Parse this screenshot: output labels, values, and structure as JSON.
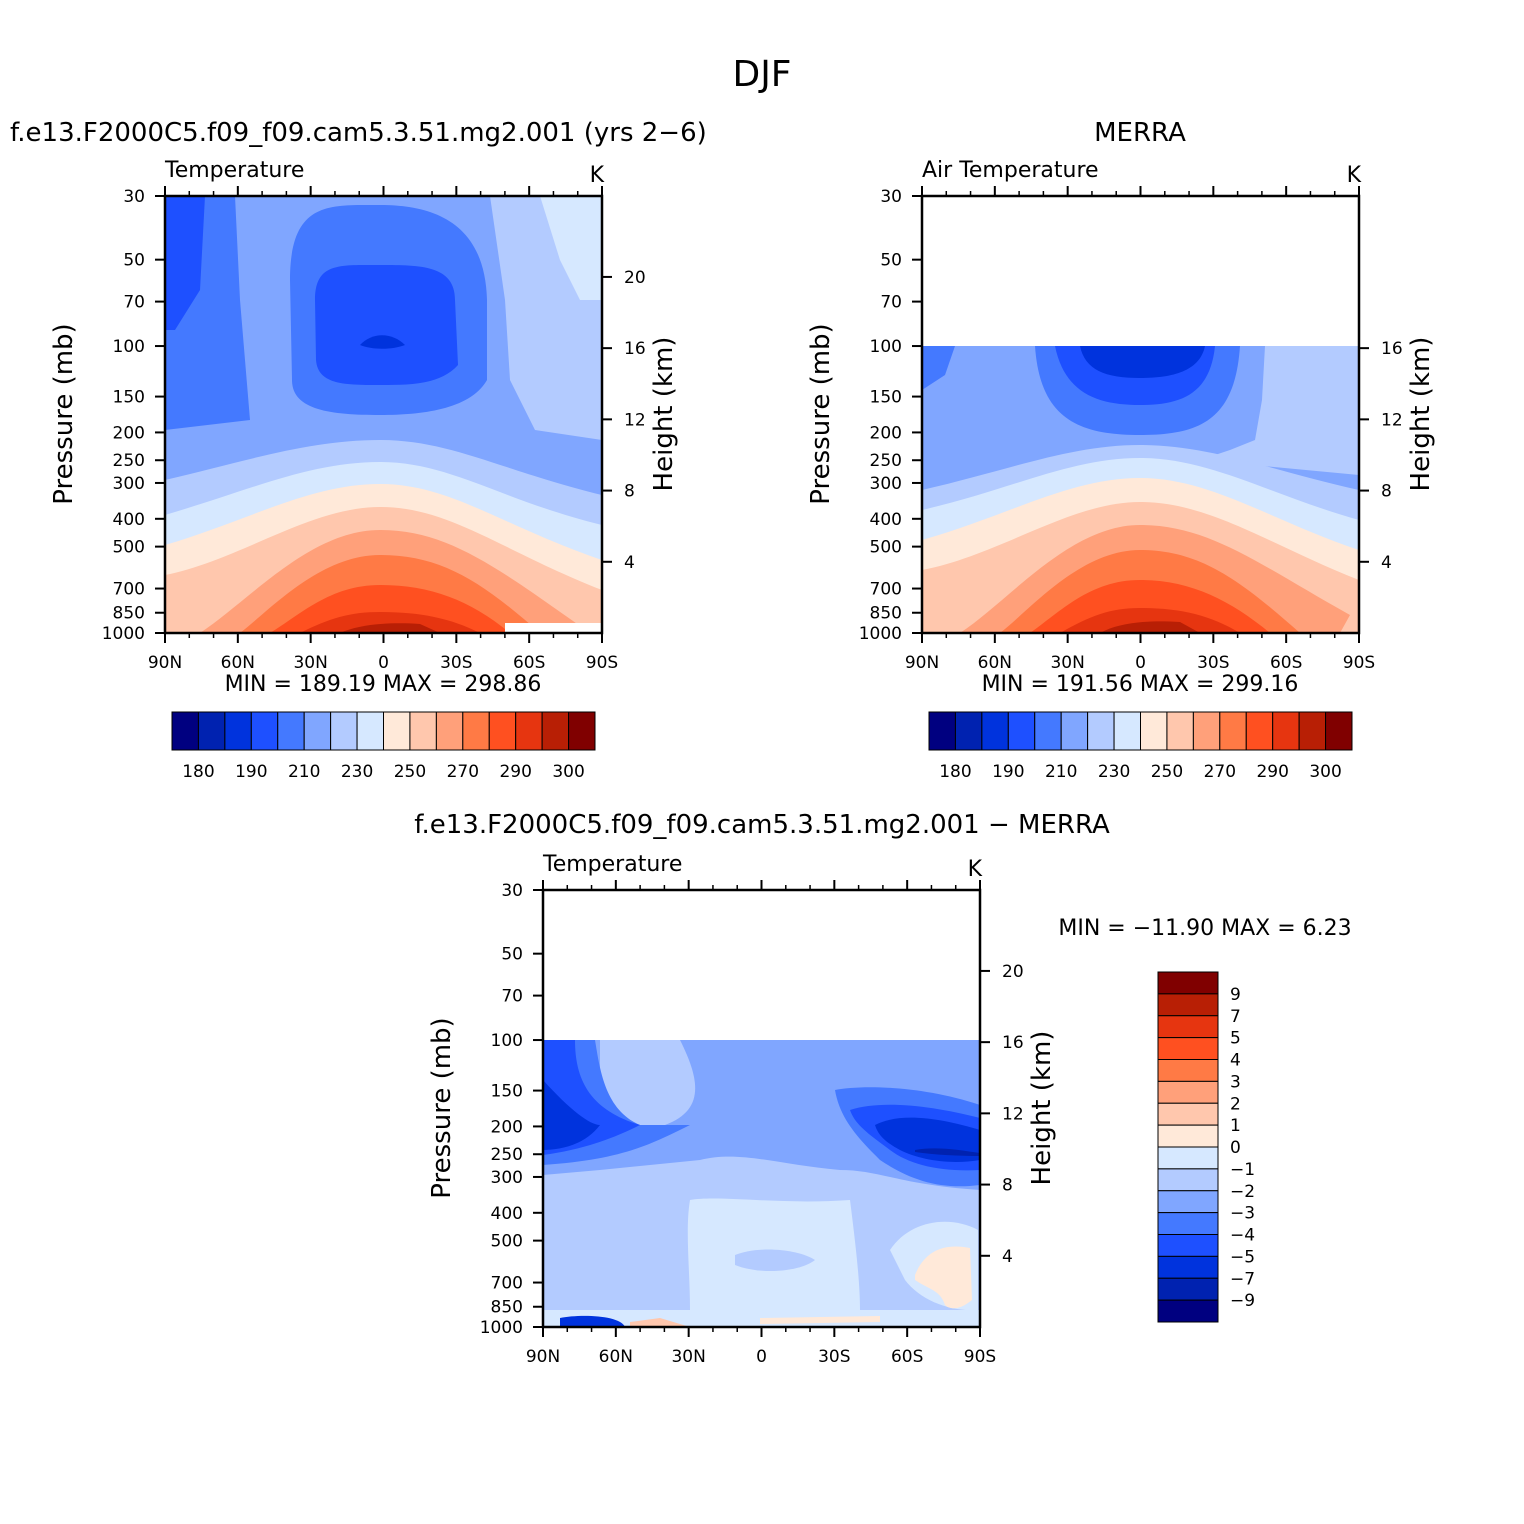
{
  "figure_title": "DJF",
  "colors": {
    "c1": "#000080",
    "c2": "#0022b0",
    "c3": "#0033dd",
    "c4": "#1e50ff",
    "c5": "#4479ff",
    "c6": "#80a6ff",
    "c7": "#b3cbff",
    "c8": "#d6e8ff",
    "c9": "#ffe9d9",
    "c10": "#ffc7ad",
    "c11": "#ffa07a",
    "c12": "#ff7a45",
    "c13": "#ff5020",
    "c14": "#e63510",
    "c15": "#b81f05",
    "c16": "#800000"
  },
  "chart_data": [
    {
      "id": "model",
      "type": "contour",
      "title": "f.e13.F2000C5.f09_f09.cam5.3.51.mg2.001 (yrs 2−6)",
      "variable": "Temperature",
      "units": "K",
      "ylabel": "Pressure (mb)",
      "ylabel_right": "Height (km)",
      "x_ticks": [
        "90N",
        "60N",
        "30N",
        "0",
        "30S",
        "60S",
        "90S"
      ],
      "x_values": [
        90,
        60,
        30,
        0,
        -30,
        -60,
        -90
      ],
      "y_ticks": [
        30,
        50,
        70,
        100,
        150,
        200,
        250,
        300,
        400,
        500,
        700,
        850,
        1000
      ],
      "height_ticks": [
        20,
        16,
        12,
        8,
        4
      ],
      "ylim_mb": [
        1000,
        30
      ],
      "stats": "MIN  =  189.19    MAX  =  298.86",
      "min": 189.19,
      "max": 298.86,
      "colorbar_labels": [
        "180",
        "190",
        "210",
        "230",
        "250",
        "270",
        "290",
        "300"
      ],
      "colorbar_orientation": "horizontal"
    },
    {
      "id": "obs",
      "type": "contour",
      "title": "MERRA",
      "variable": "Air Temperature",
      "units": "K",
      "ylabel": "Pressure (mb)",
      "ylabel_right": "Height (km)",
      "x_ticks": [
        "90N",
        "60N",
        "30N",
        "0",
        "30S",
        "60S",
        "90S"
      ],
      "x_values": [
        90,
        60,
        30,
        0,
        -30,
        -60,
        -90
      ],
      "y_ticks": [
        30,
        50,
        70,
        100,
        150,
        200,
        250,
        300,
        400,
        500,
        700,
        850,
        1000
      ],
      "height_ticks": [
        16,
        12,
        8,
        4
      ],
      "ylim_mb": [
        1000,
        30
      ],
      "data_top_mb": 100,
      "stats": "MIN  =  191.56    MAX  =  299.16",
      "min": 191.56,
      "max": 299.16,
      "colorbar_labels": [
        "180",
        "190",
        "210",
        "230",
        "250",
        "270",
        "290",
        "300"
      ],
      "colorbar_orientation": "horizontal"
    },
    {
      "id": "diff",
      "type": "contour",
      "title": "f.e13.F2000C5.f09_f09.cam5.3.51.mg2.001  −  MERRA",
      "variable": "Temperature",
      "units": "K",
      "ylabel": "Pressure (mb)",
      "ylabel_right": "Height (km)",
      "x_ticks": [
        "90N",
        "60N",
        "30N",
        "0",
        "30S",
        "60S",
        "90S"
      ],
      "x_values": [
        90,
        60,
        30,
        0,
        -30,
        -60,
        -90
      ],
      "y_ticks": [
        30,
        50,
        70,
        100,
        150,
        200,
        250,
        300,
        400,
        500,
        700,
        850,
        1000
      ],
      "height_ticks": [
        20,
        16,
        12,
        8,
        4
      ],
      "ylim_mb": [
        1000,
        30
      ],
      "data_top_mb": 100,
      "stats": "MIN  =  −11.90    MAX  =     6.23",
      "min": -11.9,
      "max": 6.23,
      "colorbar_labels": [
        "9",
        "7",
        "5",
        "4",
        "3",
        "2",
        "1",
        "0",
        "−1",
        "−2",
        "−3",
        "−4",
        "−5",
        "−7",
        "−9"
      ],
      "colorbar_orientation": "vertical"
    }
  ]
}
